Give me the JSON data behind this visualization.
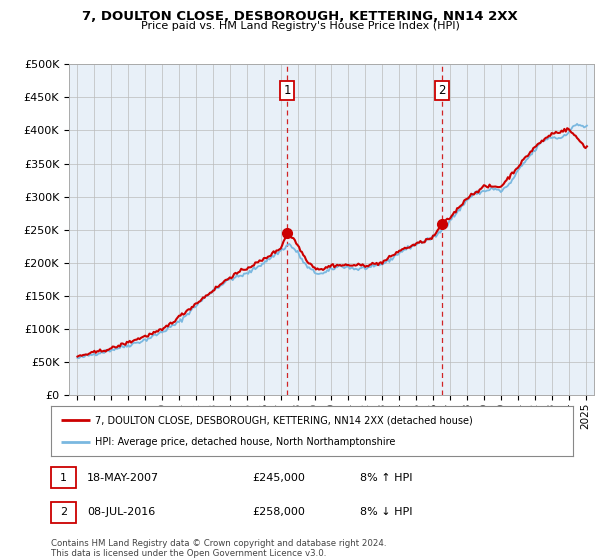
{
  "title": "7, DOULTON CLOSE, DESBOROUGH, KETTERING, NN14 2XX",
  "subtitle": "Price paid vs. HM Land Registry's House Price Index (HPI)",
  "legend_line1": "7, DOULTON CLOSE, DESBOROUGH, KETTERING, NN14 2XX (detached house)",
  "legend_line2": "HPI: Average price, detached house, North Northamptonshire",
  "footnote": "Contains HM Land Registry data © Crown copyright and database right 2024.\nThis data is licensed under the Open Government Licence v3.0.",
  "sale1_label": "1",
  "sale1_date": "18-MAY-2007",
  "sale1_price": "£245,000",
  "sale1_hpi": "8% ↑ HPI",
  "sale1_x": 2007.38,
  "sale1_y": 245000,
  "sale2_label": "2",
  "sale2_date": "08-JUL-2016",
  "sale2_price": "£258,000",
  "sale2_hpi": "8% ↓ HPI",
  "sale2_x": 2016.52,
  "sale2_y": 258000,
  "hpi_color": "#7ab8e0",
  "sale_color": "#cc0000",
  "dashed_color": "#cc0000",
  "background_color": "#e8f0f8",
  "ylim": [
    0,
    500000
  ],
  "xlim": [
    1994.5,
    2025.5
  ],
  "yticks": [
    0,
    50000,
    100000,
    150000,
    200000,
    250000,
    300000,
    350000,
    400000,
    450000,
    500000
  ],
  "xticks": [
    1995,
    1996,
    1997,
    1998,
    1999,
    2000,
    2001,
    2002,
    2003,
    2004,
    2005,
    2006,
    2007,
    2008,
    2009,
    2010,
    2011,
    2012,
    2013,
    2014,
    2015,
    2016,
    2017,
    2018,
    2019,
    2020,
    2021,
    2022,
    2023,
    2024,
    2025
  ]
}
